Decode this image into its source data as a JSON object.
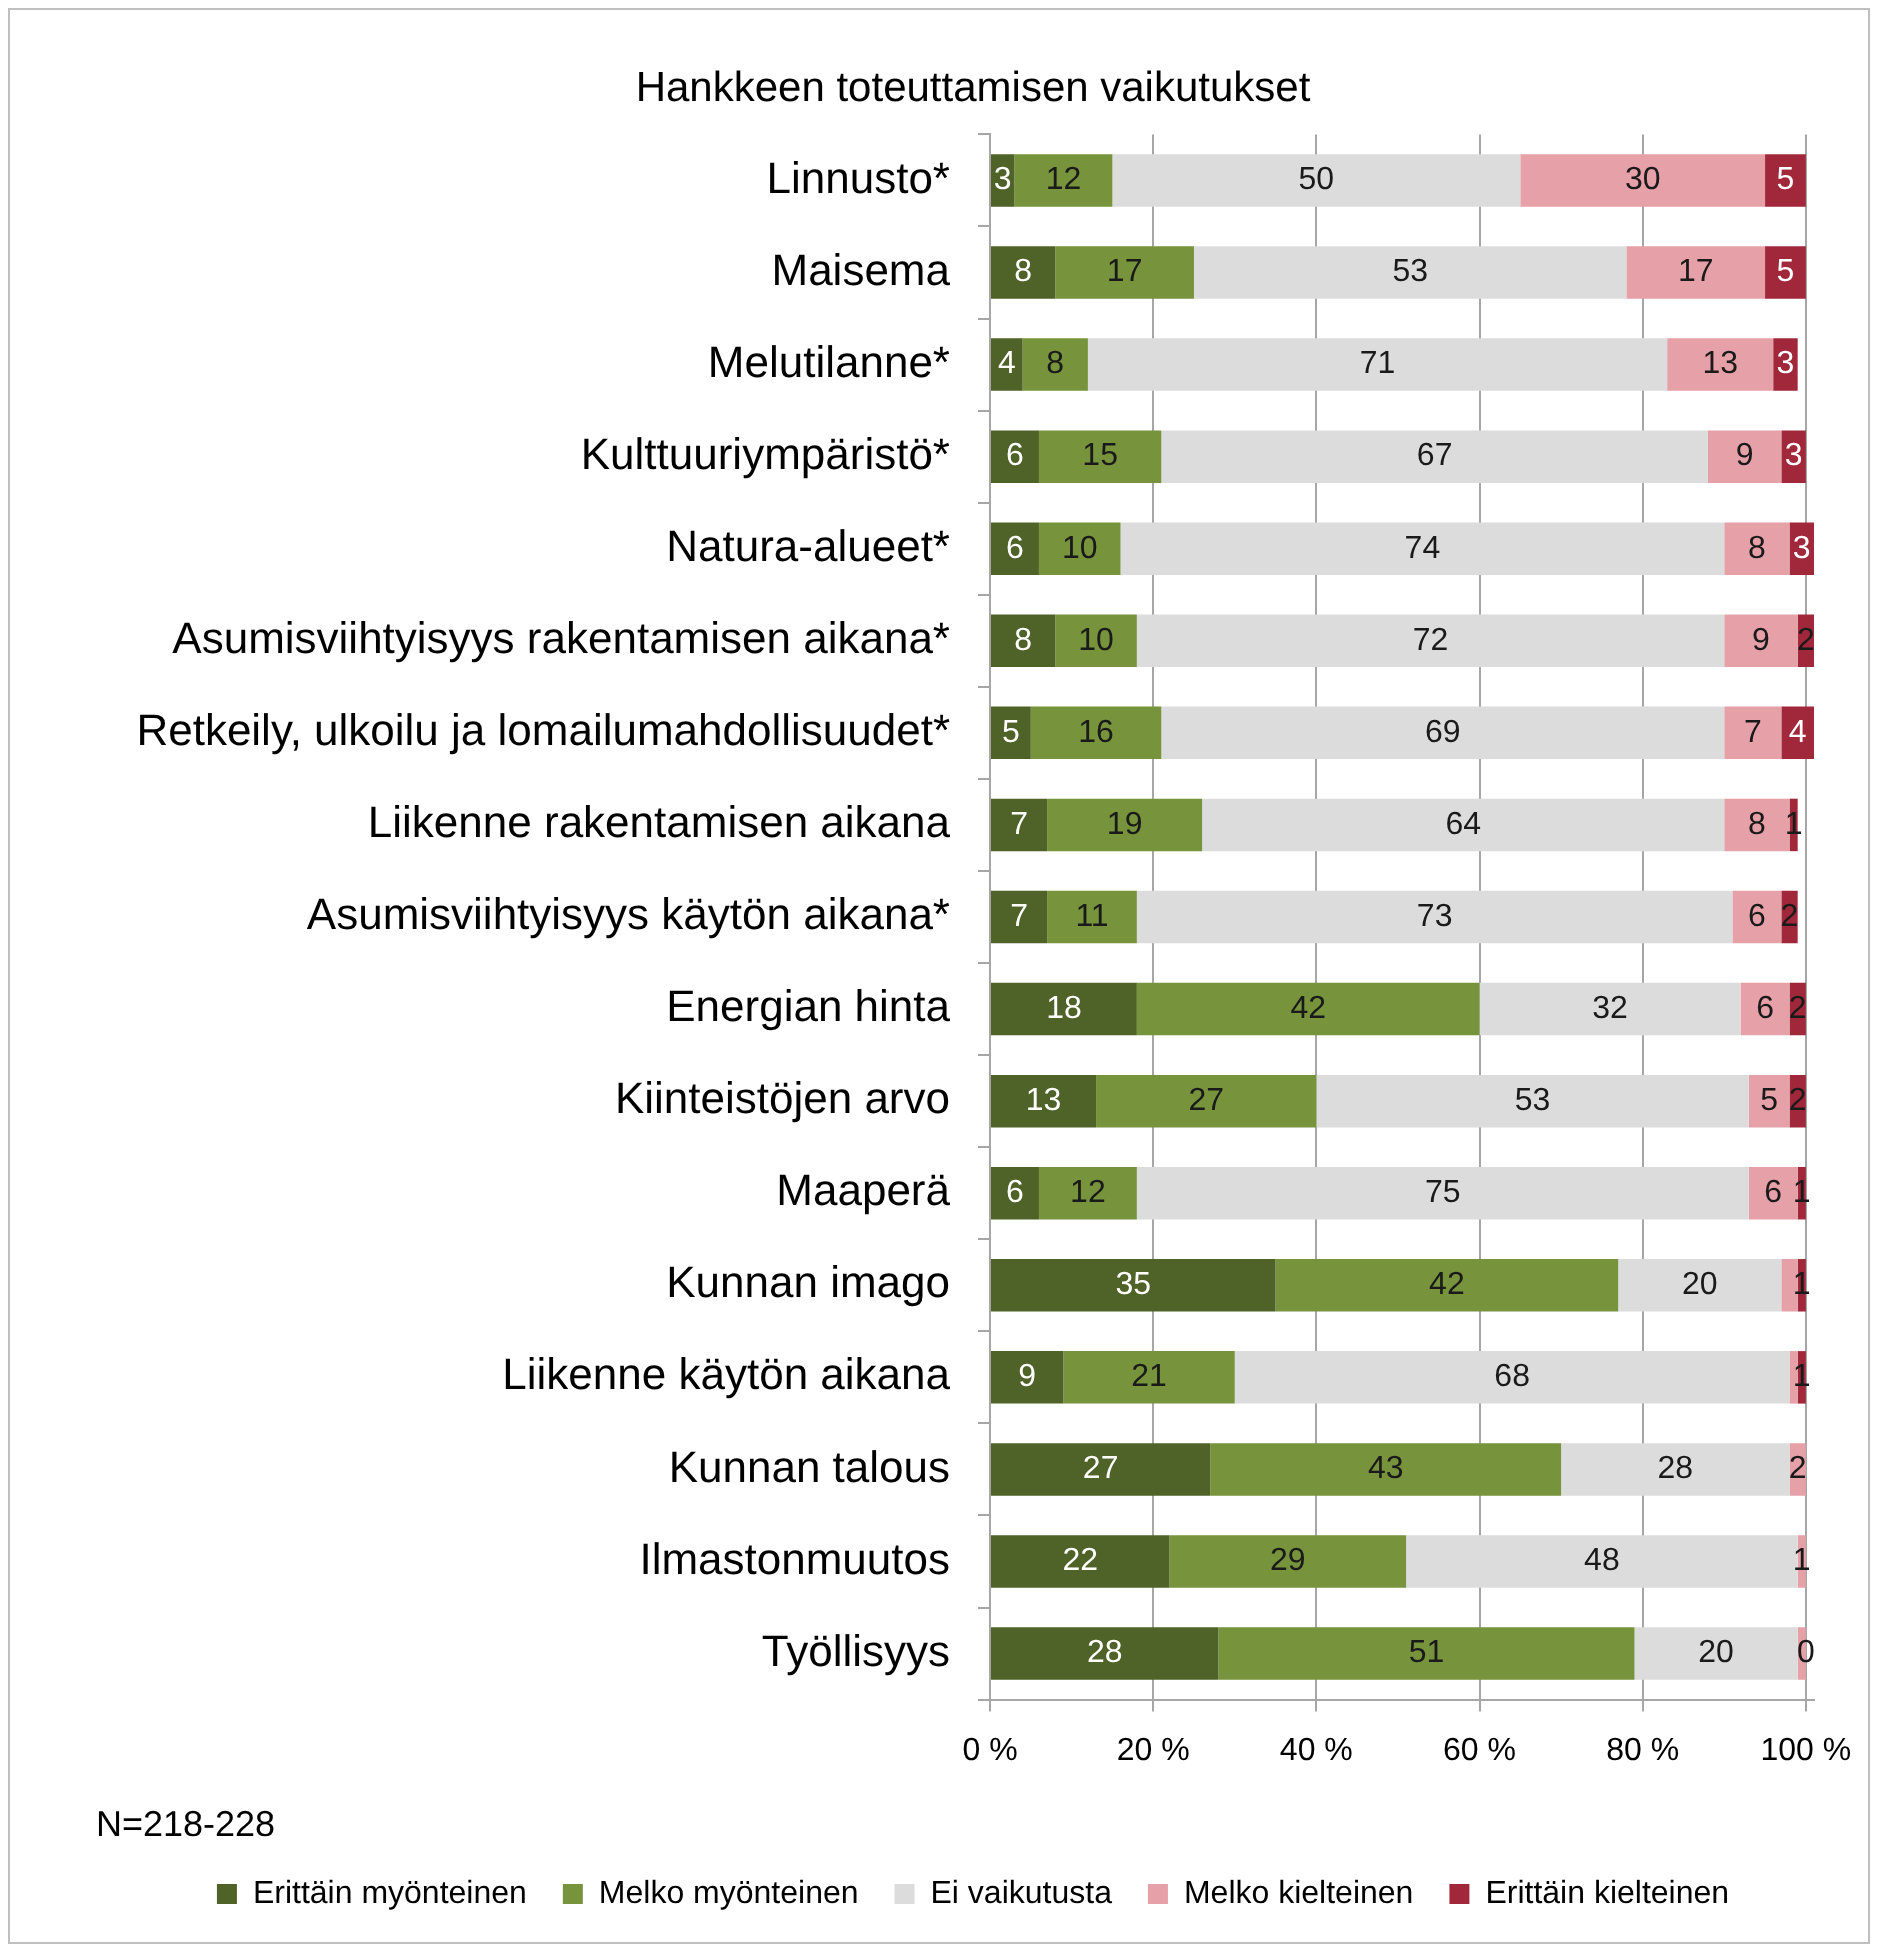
{
  "chart_data": {
    "type": "bar",
    "orientation": "horizontal",
    "stacked": true,
    "title": "Hankkeen toteuttamisen vaikutukset",
    "categories": [
      "Linnusto*",
      "Maisema",
      "Melutilanne*",
      "Kulttuuriympäristö*",
      "Natura-alueet*",
      "Asumisviihtyisyys rakentamisen aikana*",
      "Retkeily, ulkoilu ja lomailumahdollisuudet*",
      "Liikenne rakentamisen aikana",
      "Asumisviihtyisyys käytön aikana*",
      "Energian hinta",
      "Kiinteistöjen arvo",
      "Maaperä",
      "Kunnan imago",
      "Liikenne käytön aikana",
      "Kunnan talous",
      "Ilmastonmuutos",
      "Työllisyys"
    ],
    "series": [
      {
        "name": "Erittäin myönteinen",
        "color": "#4f6228",
        "values": [
          3,
          8,
          4,
          6,
          6,
          8,
          5,
          7,
          7,
          18,
          13,
          6,
          35,
          9,
          27,
          22,
          28
        ],
        "value_labels": [
          "3",
          "8",
          "4",
          "6",
          "6",
          "8",
          "5",
          "7",
          "7",
          "18",
          "13",
          "6",
          "35",
          "9",
          "27",
          "22",
          "28"
        ]
      },
      {
        "name": "Melko myönteinen",
        "color": "#77933c",
        "values": [
          12,
          17,
          8,
          15,
          10,
          10,
          16,
          19,
          11,
          42,
          27,
          12,
          42,
          21,
          43,
          29,
          51
        ],
        "value_labels": [
          "12",
          "17",
          "8",
          "15",
          "10",
          "10",
          "16",
          "19",
          "11",
          "42",
          "27",
          "12",
          "42",
          "21",
          "43",
          "29",
          "51"
        ]
      },
      {
        "name": "Ei vaikutusta",
        "color": "#dcdcdc",
        "values": [
          50,
          53,
          71,
          67,
          74,
          72,
          69,
          64,
          73,
          32,
          53,
          75,
          20,
          68,
          28,
          48,
          20
        ],
        "value_labels": [
          "50",
          "53",
          "71",
          "67",
          "74",
          "72",
          "69",
          "64",
          "73",
          "32",
          "53",
          "75",
          "20",
          "68",
          "28",
          "48",
          "20"
        ]
      },
      {
        "name": "Melko kielteinen",
        "color": "#e6a0a8",
        "values": [
          30,
          17,
          13,
          9,
          8,
          9,
          7,
          8,
          6,
          6,
          5,
          6,
          2,
          1,
          2,
          1,
          1
        ],
        "value_labels": [
          "30",
          "17",
          "13",
          "9",
          "8",
          "9",
          "7",
          "8",
          "6",
          "6",
          "5",
          "6",
          null,
          null,
          "2",
          "1",
          null
        ]
      },
      {
        "name": "Erittäin kielteinen",
        "color": "#a0283a",
        "values": [
          5,
          5,
          3,
          3,
          3,
          2,
          4,
          1,
          2,
          2,
          2,
          1,
          1,
          1,
          null,
          null,
          0
        ],
        "value_labels": [
          "5",
          "5",
          "3",
          "3",
          "3",
          "2",
          "4",
          "1",
          "2",
          "2",
          "2",
          "1",
          "1",
          "1",
          null,
          null,
          "0"
        ]
      }
    ],
    "xlim": [
      0,
      101
    ],
    "xticks": [
      {
        "value": 0,
        "label": "0 %"
      },
      {
        "value": 20,
        "label": "20 %"
      },
      {
        "value": 40,
        "label": "40 %"
      },
      {
        "value": 60,
        "label": "60 %"
      },
      {
        "value": 80,
        "label": "80 %"
      },
      {
        "value": 100,
        "label": "100 %"
      }
    ],
    "grid": "x",
    "legend": "bottom",
    "annotations": [
      "N=218-228"
    ]
  }
}
